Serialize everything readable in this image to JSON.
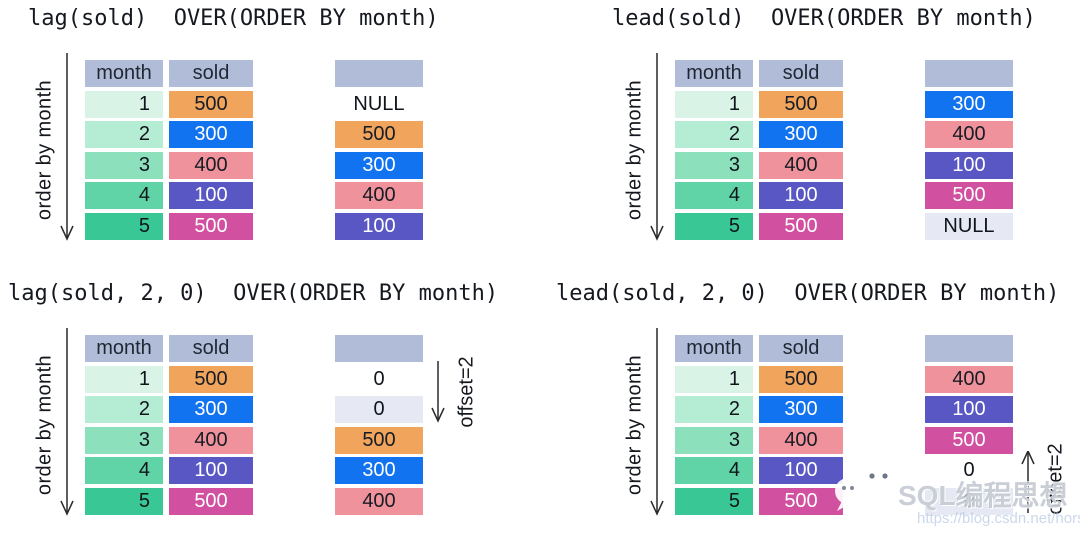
{
  "watermark": {
    "brand": "SQL编程思想",
    "url": "https://blog.csdn.net/horses",
    "icon": "wechat-icon"
  },
  "colors": {
    "header_bg": "#b1bdd8",
    "header_fg": "#1f2733",
    "month_fg": "#10141c",
    "month_bg": [
      "#d9f3e7",
      "#b4ecd4",
      "#8ce0bc",
      "#60d4a6",
      "#38c795"
    ],
    "cell_styles": {
      "sold0": {
        "bg": "#f0a45c",
        "fg": "#181c24"
      },
      "sold1": {
        "bg": "#1173f0",
        "fg": "#ffffff"
      },
      "sold2": {
        "bg": "#f0929b",
        "fg": "#181c24"
      },
      "sold3": {
        "bg": "#5957c3",
        "fg": "#ffffff"
      },
      "sold4": {
        "bg": "#d151a0",
        "fg": "#ffffff"
      },
      "plain": {
        "bg": "transparent",
        "fg": "#10141c"
      },
      "muted": {
        "bg": "#e6e9f3",
        "fg": "#10141c"
      }
    }
  },
  "panels": [
    {
      "title": "lag(sold)  OVER(ORDER BY month)",
      "order_label": "order by month",
      "table": {
        "headers": [
          "month",
          "sold"
        ],
        "rows": [
          [
            1,
            500
          ],
          [
            2,
            300
          ],
          [
            3,
            400
          ],
          [
            4,
            100
          ],
          [
            5,
            500
          ]
        ]
      },
      "result": [
        {
          "text": "NULL",
          "style": "plain"
        },
        {
          "text": "500",
          "style": "sold0"
        },
        {
          "text": "300",
          "style": "sold1"
        },
        {
          "text": "400",
          "style": "sold2"
        },
        {
          "text": "100",
          "style": "sold3"
        }
      ],
      "offset": null
    },
    {
      "title": "lead(sold)  OVER(ORDER BY month)",
      "order_label": "order by month",
      "table": {
        "headers": [
          "month",
          "sold"
        ],
        "rows": [
          [
            1,
            500
          ],
          [
            2,
            300
          ],
          [
            3,
            400
          ],
          [
            4,
            100
          ],
          [
            5,
            500
          ]
        ]
      },
      "result": [
        {
          "text": "300",
          "style": "sold1"
        },
        {
          "text": "400",
          "style": "sold2"
        },
        {
          "text": "100",
          "style": "sold3"
        },
        {
          "text": "500",
          "style": "sold4"
        },
        {
          "text": "NULL",
          "style": "muted"
        }
      ],
      "offset": null
    },
    {
      "title": "lag(sold, 2, 0)  OVER(ORDER BY month)",
      "order_label": "order by month",
      "table": {
        "headers": [
          "month",
          "sold"
        ],
        "rows": [
          [
            1,
            500
          ],
          [
            2,
            300
          ],
          [
            3,
            400
          ],
          [
            4,
            100
          ],
          [
            5,
            500
          ]
        ]
      },
      "result": [
        {
          "text": "0",
          "style": "plain"
        },
        {
          "text": "0",
          "style": "muted"
        },
        {
          "text": "500",
          "style": "sold0"
        },
        {
          "text": "300",
          "style": "sold1"
        },
        {
          "text": "400",
          "style": "sold2"
        }
      ],
      "offset": {
        "label": "offset=2",
        "direction": "down"
      }
    },
    {
      "title": "lead(sold, 2, 0)  OVER(ORDER BY month)",
      "order_label": "order by month",
      "table": {
        "headers": [
          "month",
          "sold"
        ],
        "rows": [
          [
            1,
            500
          ],
          [
            2,
            300
          ],
          [
            3,
            400
          ],
          [
            4,
            100
          ],
          [
            5,
            500
          ]
        ]
      },
      "result": [
        {
          "text": "400",
          "style": "sold2"
        },
        {
          "text": "100",
          "style": "sold3"
        },
        {
          "text": "500",
          "style": "sold4"
        },
        {
          "text": "0",
          "style": "plain"
        },
        {
          "text": "0",
          "style": "muted"
        }
      ],
      "offset": {
        "label": "offset=2",
        "direction": "up"
      }
    }
  ]
}
